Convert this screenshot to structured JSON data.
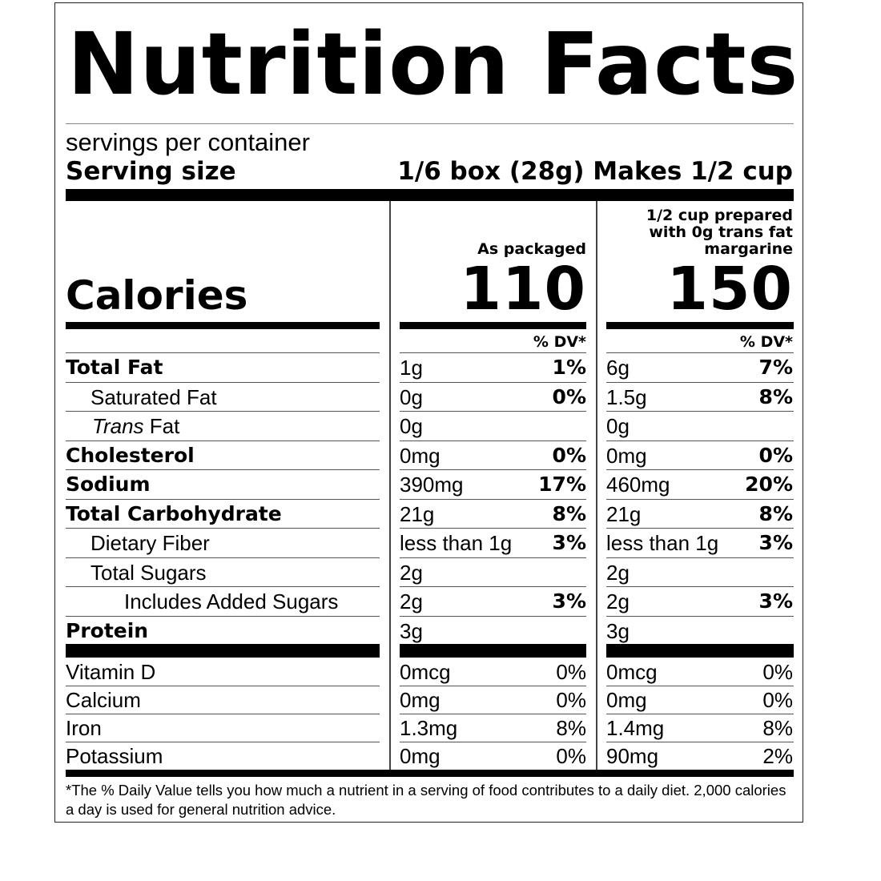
{
  "label": {
    "title": "Nutrition Facts",
    "servings_per_container": "servings per container",
    "serving_size_label": "Serving size",
    "serving_size_value": "1/6 box (28g) Makes 1/2 cup",
    "calories_label": "Calories",
    "col1": {
      "header": "As packaged",
      "calories": "110",
      "dv_header": "% DV*"
    },
    "col2": {
      "header_line1": "1/2 cup prepared",
      "header_line2": "with 0g trans fat",
      "header_line3": "margarine",
      "calories": "150",
      "dv_header": "% DV*"
    },
    "nutrients": [
      {
        "name": "Total Fat",
        "a1": "1g",
        "p1": "1%",
        "a2": "6g",
        "p2": "7%"
      },
      {
        "name": "Saturated Fat",
        "a1": "0g",
        "p1": "0%",
        "a2": "1.5g",
        "p2": "8%"
      },
      {
        "name_italic": "Trans",
        "name": " Fat",
        "a1": "0g",
        "p1": "",
        "a2": "0g",
        "p2": ""
      },
      {
        "name": "Cholesterol",
        "a1": "0mg",
        "p1": "0%",
        "a2": "0mg",
        "p2": "0%"
      },
      {
        "name": "Sodium",
        "a1": "390mg",
        "p1": "17%",
        "a2": "460mg",
        "p2": "20%"
      },
      {
        "name": "Total Carbohydrate",
        "a1": "21g",
        "p1": "8%",
        "a2": "21g",
        "p2": "8%"
      },
      {
        "name": "Dietary Fiber",
        "a1": "less than 1g",
        "p1": "3%",
        "a2": "less than 1g",
        "p2": "3%"
      },
      {
        "name": "Total Sugars",
        "a1": "2g",
        "p1": "",
        "a2": "2g",
        "p2": ""
      },
      {
        "name": "Includes Added Sugars",
        "a1": "2g",
        "p1": "3%",
        "a2": "2g",
        "p2": "3%"
      },
      {
        "name": "Protein",
        "a1": "3g",
        "p1": "",
        "a2": "3g",
        "p2": ""
      }
    ],
    "vitamins": [
      {
        "name": "Vitamin D",
        "a1": "0mcg",
        "p1": "0%",
        "a2": "0mcg",
        "p2": "0%"
      },
      {
        "name": "Calcium",
        "a1": "0mg",
        "p1": "0%",
        "a2": "0mg",
        "p2": "0%"
      },
      {
        "name": "Iron",
        "a1": "1.3mg",
        "p1": "8%",
        "a2": "1.4mg",
        "p2": "8%"
      },
      {
        "name": "Potassium",
        "a1": "0mg",
        "p1": "0%",
        "a2": "90mg",
        "p2": "2%"
      }
    ],
    "footnote": "*The % Daily Value tells you how much a nutrient in a serving of food contributes to a daily diet. 2,000 calories a day is used for general nutrition advice."
  }
}
